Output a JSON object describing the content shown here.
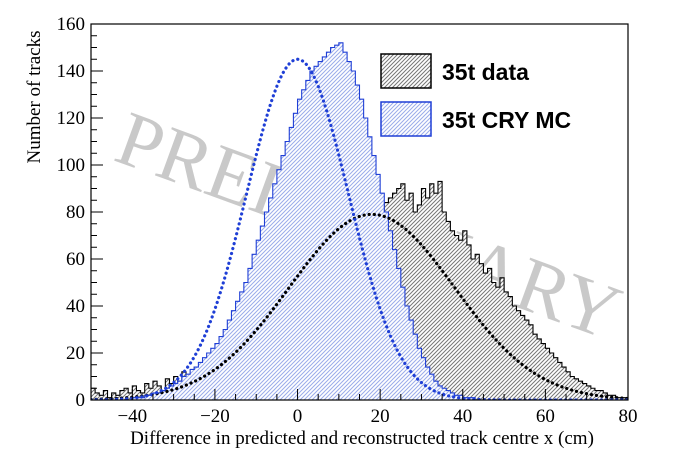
{
  "chart_data": {
    "type": "histogram",
    "xlabel": "Difference in predicted and reconstructed track centre x (cm)",
    "ylabel": "Number of tracks",
    "xlim": [
      -50,
      80
    ],
    "ylim": [
      0,
      160
    ],
    "x_ticks": [
      -40,
      -20,
      0,
      20,
      40,
      60,
      80
    ],
    "y_ticks": [
      0,
      20,
      40,
      60,
      80,
      100,
      120,
      140,
      160
    ],
    "grid": false,
    "legend_position": "top-right",
    "watermark": "PRELIMINARY",
    "series": [
      {
        "name": "35t data",
        "color": "#000000",
        "fill": "#8a8a8a",
        "bin_width": 1,
        "bin_start": -50,
        "values": [
          5,
          3,
          2,
          4,
          1,
          3,
          2,
          4,
          5,
          3,
          6,
          4,
          3,
          7,
          5,
          8,
          6,
          4,
          9,
          7,
          10,
          8,
          12,
          9,
          11,
          14,
          12,
          10,
          15,
          18,
          20,
          17,
          22,
          25,
          28,
          24,
          30,
          34,
          32,
          29,
          38,
          35,
          42,
          40,
          44,
          46,
          40,
          48,
          52,
          50,
          56,
          54,
          58,
          52,
          60,
          62,
          58,
          64,
          66,
          60,
          62,
          68,
          66,
          70,
          64,
          72,
          75,
          68,
          78,
          82,
          80,
          84,
          86,
          88,
          90,
          92,
          85,
          88,
          80,
          83,
          90,
          86,
          92,
          88,
          93,
          80,
          76,
          72,
          70,
          68,
          72,
          66,
          60,
          62,
          58,
          54,
          56,
          50,
          48,
          52,
          46,
          44,
          40,
          38,
          36,
          34,
          32,
          28,
          26,
          24,
          22,
          20,
          18,
          16,
          14,
          12,
          10,
          9,
          8,
          7,
          6,
          5,
          4,
          4,
          3,
          2,
          2,
          1,
          1,
          1,
          0,
          0
        ]
      },
      {
        "name": "35t CRY MC",
        "color": "#1f3fd6",
        "fill": "#c8d2f4",
        "bin_width": 1,
        "bin_start": -50,
        "values": [
          0,
          0,
          0,
          0,
          0,
          0,
          0,
          0,
          0,
          0,
          1,
          1,
          1,
          2,
          2,
          3,
          3,
          4,
          5,
          6,
          7,
          8,
          10,
          11,
          13,
          14,
          16,
          18,
          20,
          22,
          24,
          27,
          30,
          34,
          38,
          42,
          46,
          50,
          56,
          62,
          68,
          74,
          80,
          86,
          92,
          98,
          104,
          110,
          116,
          122,
          128,
          132,
          136,
          140,
          142,
          144,
          146,
          148,
          150,
          151,
          152,
          148,
          144,
          140,
          134,
          128,
          120,
          112,
          104,
          96,
          88,
          80,
          72,
          64,
          56,
          48,
          40,
          34,
          28,
          22,
          18,
          14,
          11,
          8,
          6,
          5,
          4,
          3,
          2,
          2,
          1,
          1,
          1,
          0,
          0,
          0,
          0,
          0,
          0,
          0,
          0,
          0,
          0,
          0,
          0,
          0,
          0,
          0,
          0,
          0,
          0,
          0,
          0,
          0,
          0,
          0,
          0,
          0,
          0,
          0,
          0,
          0,
          0,
          0,
          0,
          0,
          0,
          0,
          0,
          0,
          0
        ]
      }
    ],
    "fits": [
      {
        "series": "35t data",
        "shape": "gaussian",
        "amplitude": 79,
        "mean": 18,
        "sigma": 20,
        "color": "#000000"
      },
      {
        "series": "35t CRY MC",
        "shape": "gaussian",
        "amplitude": 145,
        "mean": 0,
        "sigma": 12.3,
        "color": "#1f3fd6"
      }
    ]
  }
}
